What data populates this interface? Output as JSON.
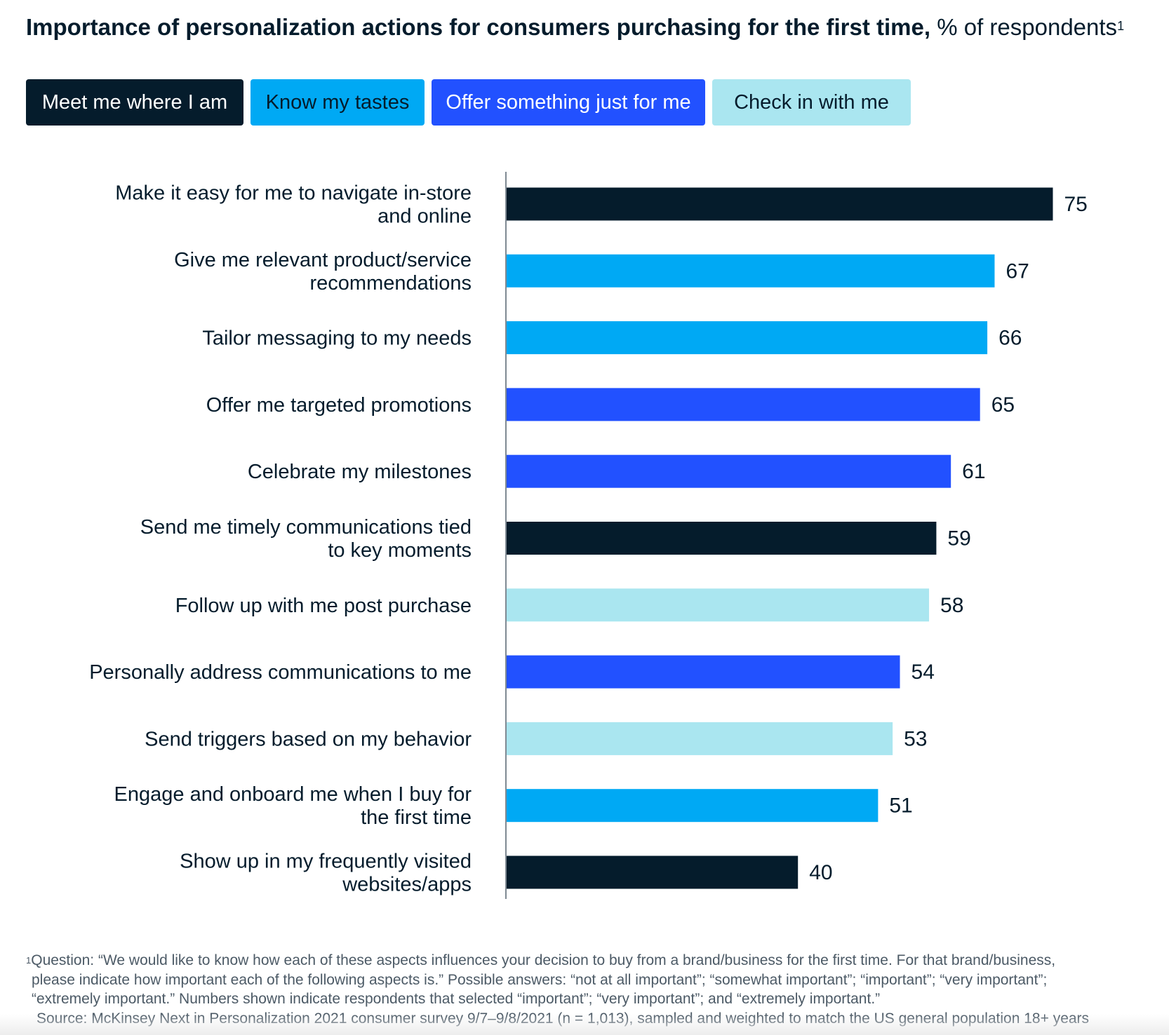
{
  "title": {
    "bold": "Importance of personalization actions for consumers purchasing for the first time,",
    "unit": "% of respondents",
    "footnote_mark": "1"
  },
  "legend": [
    {
      "label": "Meet me where I am",
      "color": "#051c2c",
      "text_color": "#ffffff"
    },
    {
      "label": "Know my tastes",
      "color": "#00a9f4",
      "text_color": "#051c2c"
    },
    {
      "label": "Offer something just for me",
      "color": "#2251ff",
      "text_color": "#ffffff"
    },
    {
      "label": "Check in with me",
      "color": "#aae6f0",
      "text_color": "#051c2c"
    }
  ],
  "chart_data": {
    "type": "bar",
    "orientation": "horizontal",
    "title": "Importance of personalization actions for consumers purchasing for the first time, % of respondents",
    "categories": [
      "Make it easy for me to navigate in-store and online",
      "Give me relevant product/service recommendations",
      "Tailor messaging to my needs",
      "Offer me targeted promotions",
      "Celebrate my milestones",
      "Send me timely communications tied to key moments",
      "Follow up with me post purchase",
      "Personally address communications to me",
      "Send triggers based on my behavior",
      "Engage and onboard me when I buy for the first time",
      "Show up in my frequently visited websites/apps"
    ],
    "category_lines": [
      [
        "Make it easy for me to navigate in-store",
        "and online"
      ],
      [
        "Give me relevant product/service",
        "recommendations"
      ],
      [
        "Tailor messaging to my needs"
      ],
      [
        "Offer me targeted promotions"
      ],
      [
        "Celebrate my milestones"
      ],
      [
        "Send me timely communications tied",
        "to key moments"
      ],
      [
        "Follow up with me post purchase"
      ],
      [
        "Personally address communications to me"
      ],
      [
        "Send triggers based on my behavior"
      ],
      [
        "Engage and onboard me when I buy for",
        "the first time"
      ],
      [
        "Show up in my frequently visited",
        "websites/apps"
      ]
    ],
    "values": [
      75,
      67,
      66,
      65,
      61,
      59,
      58,
      54,
      53,
      51,
      40
    ],
    "groups": [
      "Meet me where I am",
      "Know my tastes",
      "Know my tastes",
      "Offer something just for me",
      "Offer something just for me",
      "Meet me where I am",
      "Check in with me",
      "Offer something just for me",
      "Check in with me",
      "Know my tastes",
      "Meet me where I am"
    ],
    "xlim": [
      0,
      100
    ],
    "grid": false,
    "legend_position": "top"
  },
  "footnote": {
    "mark": "1",
    "lines": [
      "Question: “We would like to know how each of these aspects influences your decision to buy from a brand/business for the first time. For that brand/business,",
      "please indicate how important each of the following aspects is.” Possible answers: “not at all important”; “somewhat important”; “important”; “very important”;",
      "“extremely important.” Numbers shown indicate respondents that selected “important”; “very important”; and “extremely important.”"
    ]
  },
  "source": "Source: McKinsey Next in Personalization 2021 consumer survey 9/7–9/8/2021 (n = 1,013), sampled and weighted to match the US general population 18+ years"
}
